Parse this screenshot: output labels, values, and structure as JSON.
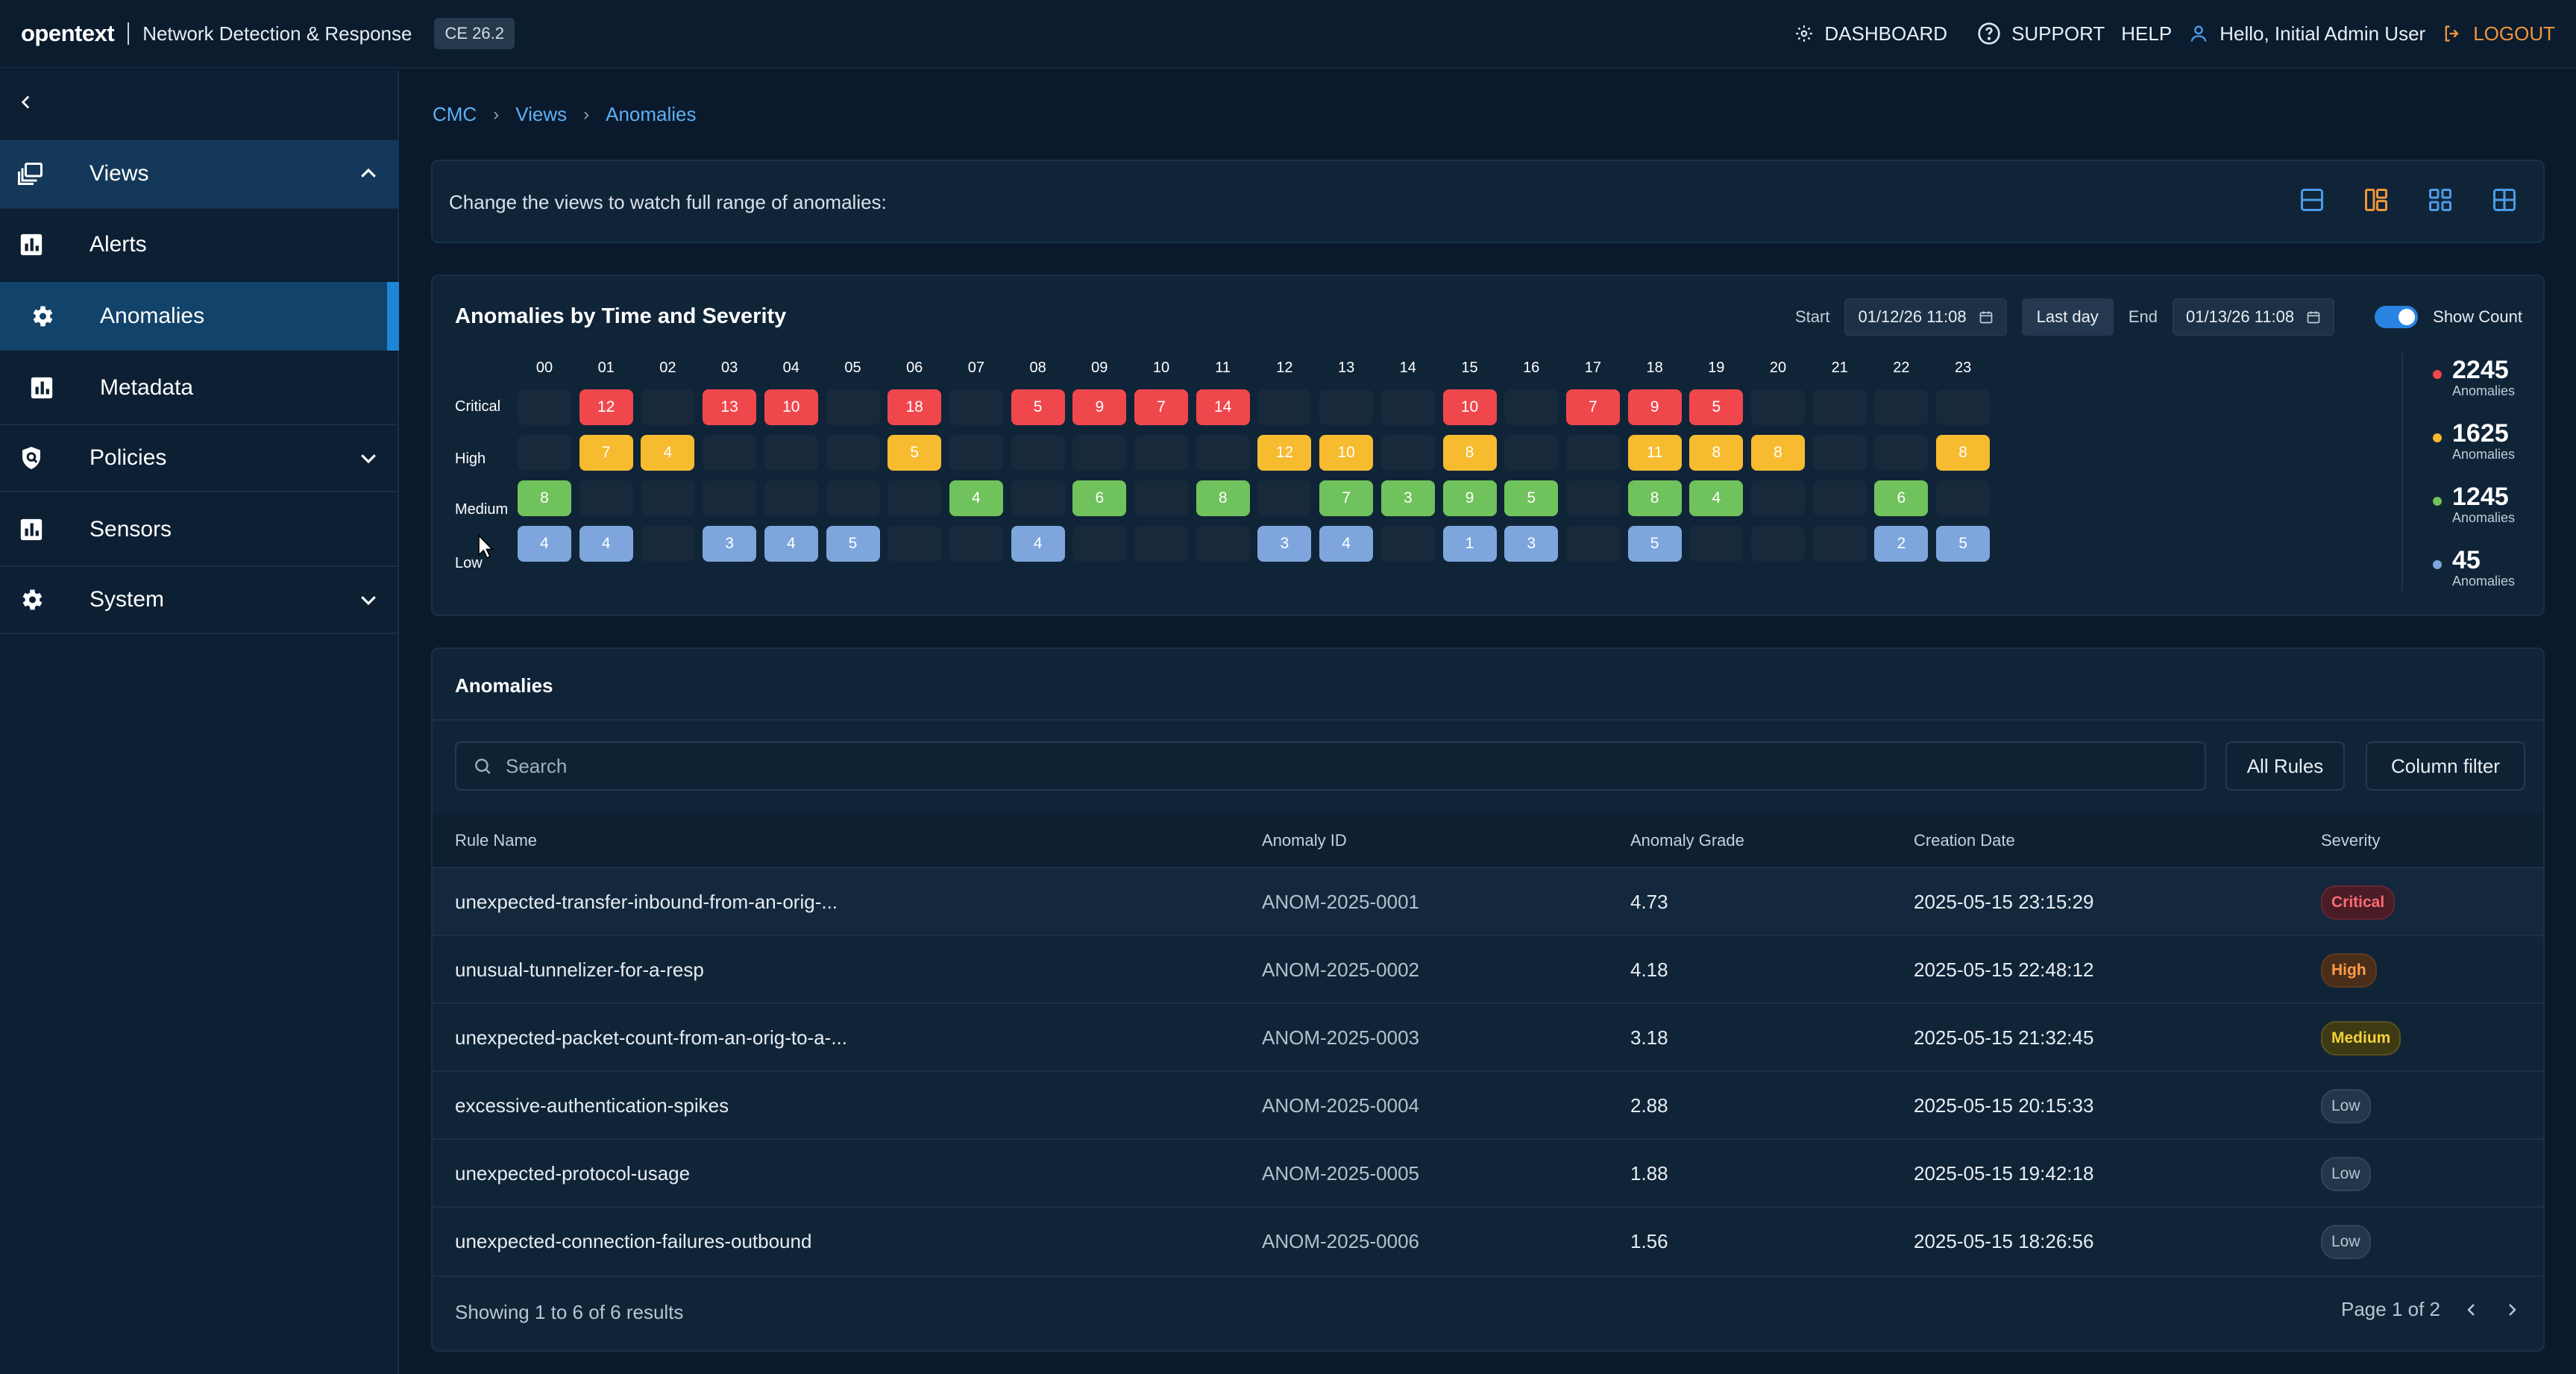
{
  "header": {
    "brand": "opentext",
    "product": "Network Detection & Response",
    "version": "CE 26.2",
    "dashboard": "DASHBOARD",
    "support": "SUPPORT",
    "help": "HELP",
    "user": "Hello, Initial Admin User",
    "logout": "LOGOUT"
  },
  "sidebar": {
    "items": [
      {
        "label": "Views"
      },
      {
        "label": "Alerts"
      },
      {
        "label": "Anomalies"
      },
      {
        "label": "Metadata"
      },
      {
        "label": "Policies"
      },
      {
        "label": "Sensors"
      },
      {
        "label": "System"
      }
    ]
  },
  "breadcrumb": [
    "CMC",
    "Views",
    "Anomalies"
  ],
  "views_bar": {
    "text": "Change the views to watch full range of anomalies:"
  },
  "heatmap": {
    "title": "Anomalies by Time and Severity",
    "start_label": "Start",
    "start_value": "01/12/26 11:08",
    "last_day": "Last day",
    "end_label": "End",
    "end_value": "01/13/26 11:08",
    "show_count": "Show Count",
    "hours": [
      "00",
      "01",
      "02",
      "03",
      "04",
      "05",
      "06",
      "07",
      "08",
      "09",
      "10",
      "11",
      "12",
      "13",
      "14",
      "15",
      "16",
      "17",
      "18",
      "19",
      "20",
      "21",
      "22",
      "23"
    ],
    "rows": [
      {
        "label": "Critical",
        "severity": "critical",
        "values": [
          null,
          12,
          null,
          13,
          10,
          null,
          18,
          null,
          5,
          9,
          7,
          14,
          null,
          null,
          null,
          10,
          null,
          7,
          9,
          5,
          null,
          null,
          null,
          null
        ]
      },
      {
        "label": "High",
        "severity": "high",
        "values": [
          null,
          7,
          4,
          null,
          null,
          null,
          5,
          null,
          null,
          null,
          null,
          null,
          12,
          10,
          null,
          8,
          null,
          null,
          11,
          8,
          8,
          null,
          null,
          8
        ]
      },
      {
        "label": "Medium",
        "severity": "medium",
        "values": [
          8,
          null,
          null,
          null,
          null,
          null,
          null,
          4,
          null,
          6,
          null,
          8,
          null,
          7,
          3,
          9,
          5,
          null,
          8,
          4,
          null,
          null,
          6,
          null
        ]
      },
      {
        "label": "Low",
        "severity": "low",
        "values": [
          4,
          4,
          null,
          3,
          4,
          5,
          null,
          null,
          4,
          null,
          null,
          null,
          3,
          4,
          null,
          1,
          3,
          null,
          5,
          null,
          null,
          null,
          2,
          5
        ]
      }
    ],
    "legend": [
      {
        "count": "2245",
        "label": "Anomalies",
        "color": "#f0474d"
      },
      {
        "count": "1625",
        "label": "Anomalies",
        "color": "#f7bb30"
      },
      {
        "count": "1245",
        "label": "Anomalies",
        "color": "#6fc25c"
      },
      {
        "count": "45",
        "label": "Anomalies",
        "color": "#7ea6dd"
      }
    ]
  },
  "table": {
    "title": "Anomalies",
    "search_placeholder": "Search",
    "all_rules": "All Rules",
    "column_filter": "Column filter",
    "columns": [
      "Rule Name",
      "Anomaly ID",
      "Anomaly Grade",
      "Creation Date",
      "Severity"
    ],
    "rows": [
      {
        "rule": "unexpected-transfer-inbound-from-an-orig-...",
        "id": "ANOM-2025-0001",
        "grade": "4.73",
        "date": "2025-05-15 23:15:29",
        "severity": "Critical",
        "sev_class": "critical"
      },
      {
        "rule": "unusual-tunnelizer-for-a-resp",
        "id": "ANOM-2025-0002",
        "grade": "4.18",
        "date": "2025-05-15 22:48:12",
        "severity": "High",
        "sev_class": "high"
      },
      {
        "rule": "unexpected-packet-count-from-an-orig-to-a-...",
        "id": "ANOM-2025-0003",
        "grade": "3.18",
        "date": "2025-05-15 21:32:45",
        "severity": "Medium",
        "sev_class": "medium"
      },
      {
        "rule": "excessive-authentication-spikes",
        "id": "ANOM-2025-0004",
        "grade": "2.88",
        "date": "2025-05-15 20:15:33",
        "severity": "Low",
        "sev_class": "low"
      },
      {
        "rule": "unexpected-protocol-usage",
        "id": "ANOM-2025-0005",
        "grade": "1.88",
        "date": "2025-05-15 19:42:18",
        "severity": "Low",
        "sev_class": "low"
      },
      {
        "rule": "unexpected-connection-failures-outbound",
        "id": "ANOM-2025-0006",
        "grade": "1.56",
        "date": "2025-05-15 18:26:56",
        "severity": "Low",
        "sev_class": "low"
      }
    ],
    "footer": "Showing 1 to 6 of 6 results",
    "page": "Page 1 of 2"
  }
}
